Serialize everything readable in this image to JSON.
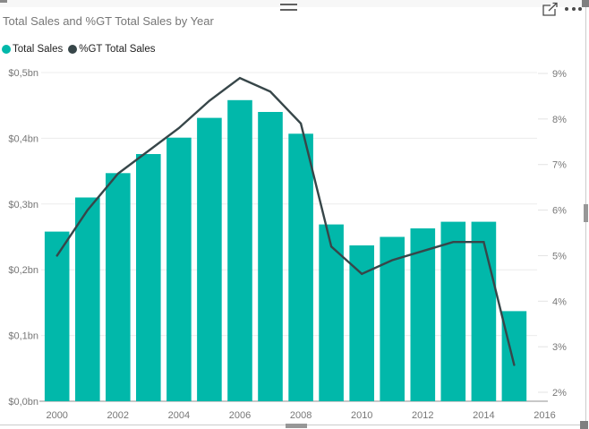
{
  "title": "Total Sales and %GT Total Sales by Year",
  "legend": {
    "items": [
      {
        "label": "Total Sales",
        "color": "#01B8AA"
      },
      {
        "label": "%GT Total Sales",
        "color": "#374649"
      }
    ]
  },
  "chrome": {
    "icons": [
      "drag-handle-icon",
      "focus-mode-icon",
      "more-options-icon"
    ],
    "handles": [
      "resize-top-left",
      "resize-top-right",
      "resize-right-mid",
      "resize-bottom-mid",
      "resize-bottom-right"
    ]
  },
  "chart_data": {
    "type": "combo-bar-line",
    "title": "Total Sales and %GT Total Sales by Year",
    "categories": [
      "2000",
      "2001",
      "2002",
      "2003",
      "2004",
      "2005",
      "2006",
      "2007",
      "2008",
      "2009",
      "2010",
      "2011",
      "2012",
      "2013",
      "2014",
      "2015"
    ],
    "series": [
      {
        "name": "Total Sales",
        "type": "bar",
        "unit": "$bn",
        "color": "#01B8AA",
        "values": [
          0.258,
          0.31,
          0.347,
          0.376,
          0.401,
          0.431,
          0.458,
          0.44,
          0.407,
          0.269,
          0.237,
          0.25,
          0.263,
          0.273,
          0.273,
          0.137
        ]
      },
      {
        "name": "%GT Total Sales",
        "type": "line",
        "unit": "%",
        "color": "#374649",
        "values": [
          5.0,
          6.0,
          6.8,
          7.3,
          7.8,
          8.4,
          8.9,
          8.6,
          7.9,
          5.2,
          4.6,
          4.9,
          5.1,
          5.3,
          5.3,
          2.6
        ]
      }
    ],
    "value_axis": {
      "min": 0,
      "max": 0.5,
      "tick_step": 0.1,
      "ticks": [
        "$0,0bn",
        "$0,1bn",
        "$0,2bn",
        "$0,3bn",
        "$0,4bn",
        "$0,5bn"
      ]
    },
    "percent_axis": {
      "min": 2,
      "max": 9,
      "tick_step": 1,
      "ticks": [
        "2%",
        "3%",
        "4%",
        "5%",
        "6%",
        "7%",
        "8%",
        "9%"
      ]
    },
    "x_axis": {
      "ticks": [
        "2000",
        "2002",
        "2004",
        "2006",
        "2008",
        "2010",
        "2012",
        "2014",
        "2016"
      ]
    },
    "grid": true,
    "legend_position": "top-left"
  }
}
